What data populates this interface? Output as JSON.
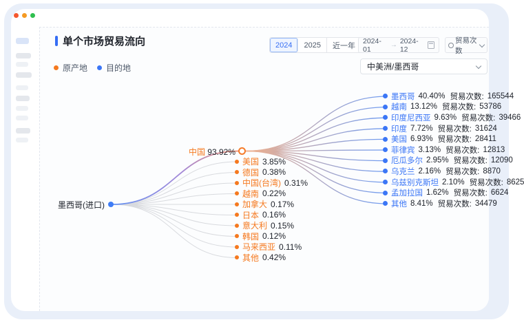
{
  "window": {
    "traffic_lights": [
      "#f4572e",
      "#f59a23",
      "#2fbf4f"
    ]
  },
  "header": {
    "title": "单个市场贸易流向",
    "period_tabs": [
      {
        "label": "2024",
        "selected": true
      },
      {
        "label": "2025",
        "selected": false
      },
      {
        "label": "近一年",
        "selected": false
      }
    ],
    "date_range": {
      "start": "2024-01",
      "end": "2024-12"
    },
    "metric_dropdown": "贸易次数"
  },
  "legend": {
    "origin": {
      "label": "原产地",
      "color": "#f5791f"
    },
    "destination": {
      "label": "目的地",
      "color": "#3b76f6"
    }
  },
  "market_select": {
    "value": "中美洲/墨西哥"
  },
  "chart_data": {
    "type": "flow-tree",
    "title": "单个市场贸易流向",
    "metric_row_label": "贸易次数:",
    "root": {
      "label": "墨西哥(进口)"
    },
    "main_origin": {
      "name": "中国",
      "share": "93.92%"
    },
    "origins": [
      {
        "name": "美国",
        "share": "3.85%"
      },
      {
        "name": "德国",
        "share": "0.38%"
      },
      {
        "name": "中国(台湾)",
        "share": "0.31%"
      },
      {
        "name": "越南",
        "share": "0.22%"
      },
      {
        "name": "加拿大",
        "share": "0.17%"
      },
      {
        "name": "日本",
        "share": "0.16%"
      },
      {
        "name": "意大利",
        "share": "0.15%"
      },
      {
        "name": "韩国",
        "share": "0.12%"
      },
      {
        "name": "马来西亚",
        "share": "0.11%"
      },
      {
        "name": "其他",
        "share": "0.42%"
      }
    ],
    "destinations": [
      {
        "name": "墨西哥",
        "share": "40.40%",
        "count": "165544"
      },
      {
        "name": "越南",
        "share": "13.12%",
        "count": "53786"
      },
      {
        "name": "印度尼西亚",
        "share": "9.63%",
        "count": "39466"
      },
      {
        "name": "印度",
        "share": "7.72%",
        "count": "31624"
      },
      {
        "name": "美国",
        "share": "6.93%",
        "count": "28411"
      },
      {
        "name": "菲律宾",
        "share": "3.13%",
        "count": "12813"
      },
      {
        "name": "厄瓜多尔",
        "share": "2.95%",
        "count": "12090"
      },
      {
        "name": "乌克兰",
        "share": "2.16%",
        "count": "8870"
      },
      {
        "name": "乌兹别克斯坦",
        "share": "2.10%",
        "count": "8625"
      },
      {
        "name": "孟加拉国",
        "share": "1.62%",
        "count": "6624"
      },
      {
        "name": "其他",
        "share": "8.41%",
        "count": "34479"
      }
    ],
    "colors": {
      "accent_blue": "#366ef4",
      "origin_orange": "#f5791f",
      "destination_blue": "#3b76f6",
      "gray_link": "#d8dade"
    }
  }
}
